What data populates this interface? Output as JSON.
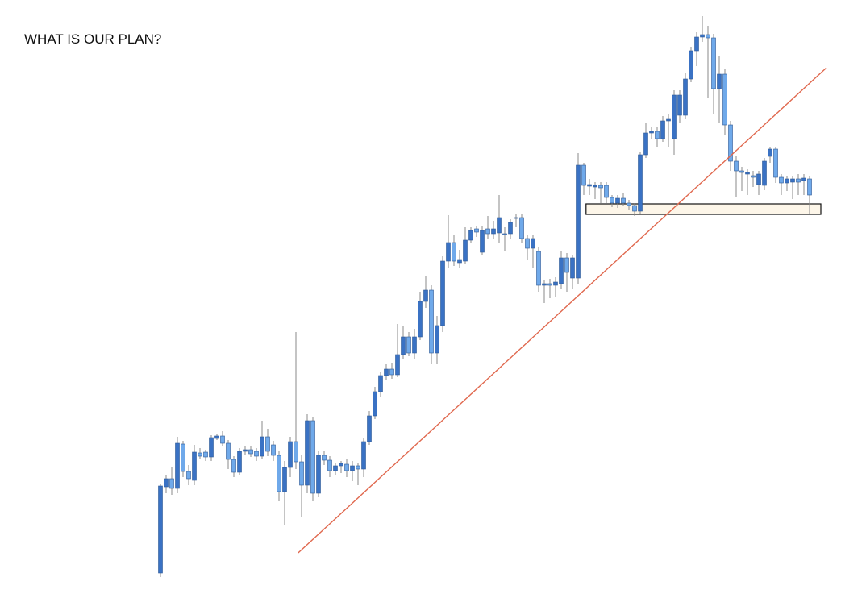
{
  "chart_data": {
    "type": "candlestick",
    "title": "WHAT IS OUR PLAN?",
    "ylim": [
      0,
      742
    ],
    "up_color": "#3a72c4",
    "down_color": "#6fa9ea",
    "edge_color": "#2c5894",
    "wick_color": "#8a8a8a",
    "open": [
      31,
      138,
      148,
      136,
      191,
      157,
      146,
      180,
      181,
      175,
      198,
      201,
      192,
      172,
      156,
      182,
      184,
      182,
      176,
      200,
      190,
      177,
      132,
      162,
      194,
      169,
      140,
      220,
      130,
      177,
      171,
      158,
      164,
      166,
      158,
      164,
      160,
      194,
      226,
      256,
      276,
      284,
      277,
      302,
      324,
      304,
      324,
      368,
      382,
      304,
      338,
      418,
      441,
      416,
      418,
      444,
      458,
      429,
      458,
      452,
      453,
      452,
      452,
      471,
      472,
      446,
      434,
      430,
      388,
      390,
      388,
      390,
      422,
      397,
      397,
      537,
      511,
      510,
      512,
      512,
      497,
      490,
      496,
      490,
      487,
      480,
      550,
      577,
      579,
      570,
      592,
      570,
      599,
      599,
      644,
      679,
      696,
      699,
      695,
      632,
      650,
      587,
      542,
      530,
      526,
      524,
      513,
      512,
      548,
      557,
      522,
      515,
      516,
      520,
      518,
      520
    ],
    "high": [
      142,
      152,
      162,
      200,
      195,
      165,
      190,
      186,
      184,
      202,
      203,
      207,
      196,
      176,
      186,
      188,
      188,
      186,
      220,
      210,
      195,
      182,
      170,
      200,
      330,
      178,
      228,
      225,
      182,
      182,
      176,
      168,
      170,
      172,
      170,
      168,
      198,
      232,
      262,
      280,
      290,
      292,
      340,
      338,
      330,
      334,
      380,
      400,
      388,
      350,
      424,
      475,
      450,
      432,
      460,
      460,
      462,
      462,
      474,
      468,
      500,
      460,
      470,
      476,
      476,
      450,
      450,
      436,
      394,
      396,
      398,
      430,
      428,
      426,
      552,
      540,
      520,
      516,
      516,
      516,
      500,
      500,
      502,
      494,
      490,
      554,
      590,
      584,
      584,
      598,
      600,
      630,
      630,
      652,
      684,
      702,
      722,
      710,
      700,
      672,
      656,
      592,
      548,
      535,
      532,
      530,
      530,
      546,
      560,
      560,
      526,
      524,
      524,
      526,
      526,
      524
    ],
    "low": [
      26,
      130,
      128,
      130,
      150,
      140,
      140,
      172,
      170,
      170,
      196,
      188,
      160,
      150,
      152,
      178,
      175,
      170,
      172,
      176,
      170,
      120,
      90,
      150,
      160,
      100,
      130,
      120,
      125,
      165,
      150,
      152,
      155,
      150,
      145,
      140,
      150,
      190,
      222,
      250,
      270,
      272,
      274,
      296,
      300,
      296,
      320,
      360,
      290,
      290,
      330,
      410,
      412,
      410,
      414,
      440,
      448,
      425,
      446,
      446,
      440,
      430,
      445,
      460,
      440,
      420,
      410,
      380,
      366,
      372,
      374,
      384,
      380,
      384,
      390,
      500,
      500,
      495,
      490,
      490,
      485,
      484,
      486,
      482,
      474,
      476,
      546,
      570,
      560,
      566,
      560,
      550,
      590,
      594,
      640,
      660,
      690,
      620,
      600,
      590,
      575,
      530,
      497,
      505,
      500,
      510,
      500,
      506,
      540,
      515,
      500,
      505,
      495,
      500,
      500,
      476
    ],
    "close": [
      139,
      148,
      136,
      192,
      157,
      148,
      181,
      176,
      175,
      199,
      201,
      192,
      172,
      156,
      182,
      184,
      179,
      176,
      200,
      182,
      177,
      132,
      162,
      194,
      169,
      140,
      220,
      130,
      177,
      171,
      158,
      164,
      167,
      158,
      164,
      160,
      194,
      226,
      256,
      276,
      284,
      277,
      302,
      324,
      304,
      324,
      368,
      382,
      304,
      338,
      418,
      441,
      418,
      420,
      444,
      456,
      454,
      456,
      452,
      458,
      472,
      451,
      466,
      472,
      446,
      434,
      446,
      388,
      390,
      388,
      392,
      422,
      404,
      422,
      537,
      512,
      513,
      512,
      509,
      497,
      490,
      496,
      490,
      487,
      480,
      550,
      577,
      579,
      570,
      592,
      594,
      624,
      624,
      644,
      679,
      696,
      699,
      695,
      632,
      650,
      587,
      542,
      530,
      528,
      528,
      522,
      526,
      542,
      557,
      522,
      515,
      520,
      520,
      516,
      521,
      500
    ],
    "trendline": {
      "x": [
        24.4,
        118
      ],
      "y": [
        56,
        658
      ],
      "color": "#e0684e"
    },
    "zone": {
      "x": [
        75.4,
        117
      ],
      "y": [
        476,
        489
      ],
      "fill": "#fdf6e9",
      "stroke": "#111111"
    }
  }
}
